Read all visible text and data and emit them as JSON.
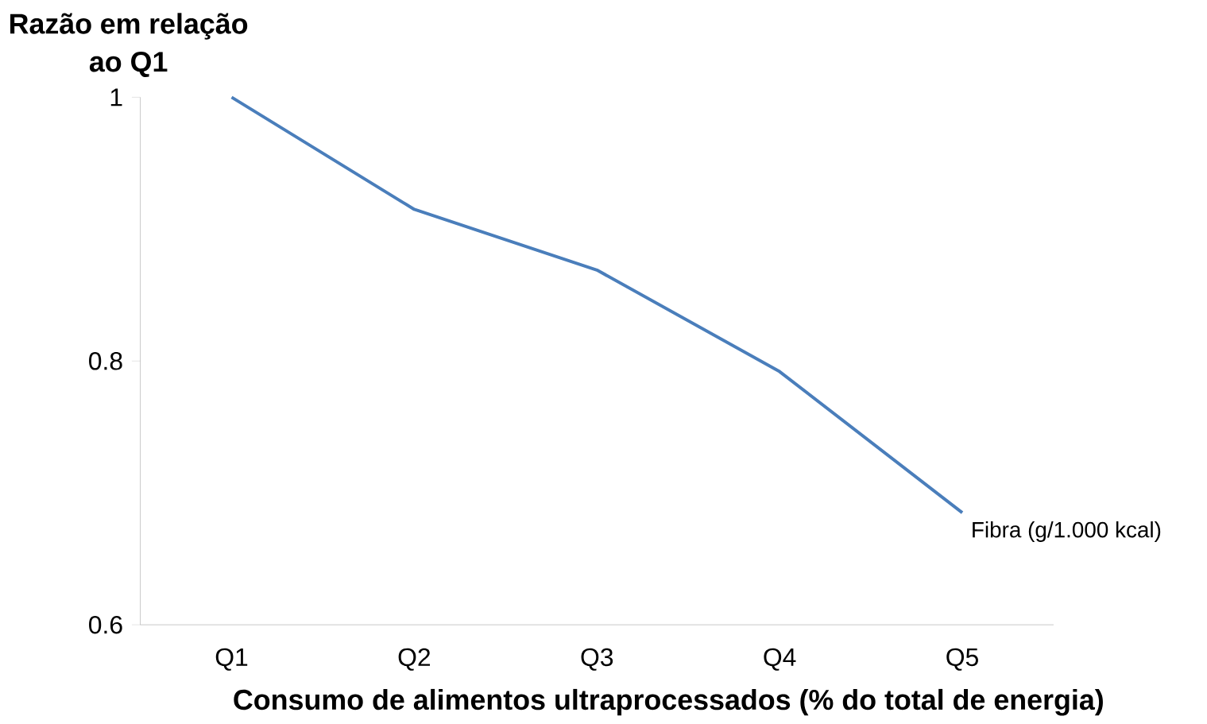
{
  "chart_data": {
    "type": "line",
    "ylabel": "Razão em relação ao Q1",
    "xlabel": "Consumo de alimentos ultraprocessados (% do total de energia)",
    "categories": [
      "Q1",
      "Q2",
      "Q3",
      "Q4",
      "Q5"
    ],
    "series": [
      {
        "name": "Fibra (g/1.000 kcal)",
        "color": "#4a7ebb",
        "values": [
          1.0,
          0.915,
          0.869,
          0.792,
          0.685
        ]
      }
    ],
    "ylim": [
      0.6,
      1
    ],
    "yticks": [
      0.6,
      0.8,
      1
    ]
  }
}
